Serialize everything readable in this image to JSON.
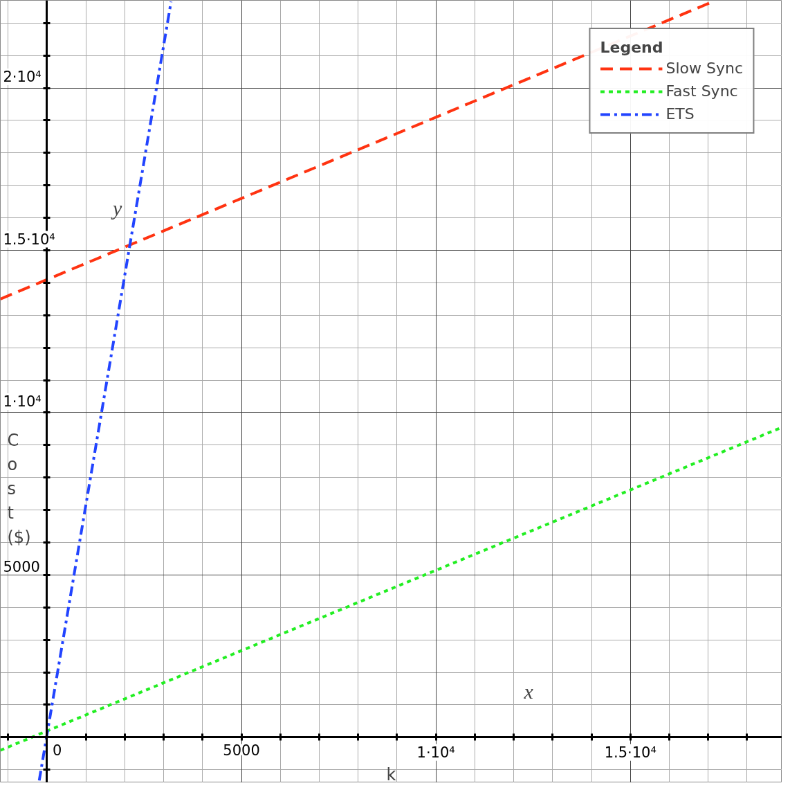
{
  "chart_data": {
    "type": "line",
    "xlabel": "k",
    "ylabel": "Cost ($)",
    "annotations": [
      "x",
      "y"
    ],
    "legend_title": "Legend",
    "legend": "top right",
    "grid": true,
    "xlim": [
      -1200,
      18900
    ],
    "ylim": [
      -1400,
      22700
    ],
    "xticks": [
      {
        "value": -1000,
        "label": null
      },
      {
        "value": 0,
        "label": "0"
      },
      {
        "value": 1000,
        "label": null
      },
      {
        "value": 2000,
        "label": null
      },
      {
        "value": 3000,
        "label": null
      },
      {
        "value": 4000,
        "label": null
      },
      5000,
      {
        "value": 6000,
        "label": null
      },
      {
        "value": 7000,
        "label": null
      },
      {
        "value": 8000,
        "label": null
      },
      {
        "value": 9000,
        "label": null
      },
      {
        "value": 10000,
        "label": "1·10⁴"
      },
      {
        "value": 11000,
        "label": null
      },
      {
        "value": 12000,
        "label": null
      },
      {
        "value": 13000,
        "label": null
      },
      {
        "value": 14000,
        "label": null
      },
      {
        "value": 15000,
        "label": "1.5·10⁴"
      },
      {
        "value": 16000,
        "label": null
      },
      {
        "value": 17000,
        "label": null
      },
      {
        "value": 18000,
        "label": null
      }
    ],
    "yticks": [
      {
        "value": -1000,
        "label": null
      },
      {
        "value": 1000,
        "label": null
      },
      {
        "value": 2000,
        "label": null
      },
      {
        "value": 3000,
        "label": null
      },
      {
        "value": 4000,
        "label": null
      },
      5000,
      {
        "value": 6000,
        "label": null
      },
      {
        "value": 7000,
        "label": null
      },
      {
        "value": 8000,
        "label": null
      },
      {
        "value": 9000,
        "label": null
      },
      {
        "value": 10000,
        "label": "1·10⁴"
      },
      {
        "value": 11000,
        "label": null
      },
      {
        "value": 12000,
        "label": null
      },
      {
        "value": 13000,
        "label": null
      },
      {
        "value": 14000,
        "label": null
      },
      {
        "value": 15000,
        "label": "1.5·10⁴"
      },
      {
        "value": 16000,
        "label": null
      },
      {
        "value": 17000,
        "label": null
      },
      {
        "value": 18000,
        "label": null
      },
      {
        "value": 19000,
        "label": null
      },
      {
        "value": 20000,
        "label": "2·10⁴"
      },
      {
        "value": 21000,
        "label": null
      },
      {
        "value": 22000,
        "label": null
      }
    ],
    "series": [
      {
        "name": "Slow Sync",
        "color": "#ff3311",
        "line_style": "dashed",
        "x": [
          -1200,
          17100
        ],
        "values": [
          13500,
          22650
        ]
      },
      {
        "name": "Fast Sync",
        "color": "#22ee22",
        "line_style": "dotted",
        "x": [
          -1200,
          18900
        ],
        "values": [
          -400,
          9550
        ]
      },
      {
        "name": "ETS",
        "color": "#2244ff",
        "line_style": "dashdot",
        "x": [
          -200,
          3190
        ],
        "values": [
          -1330,
          22660
        ]
      }
    ]
  }
}
